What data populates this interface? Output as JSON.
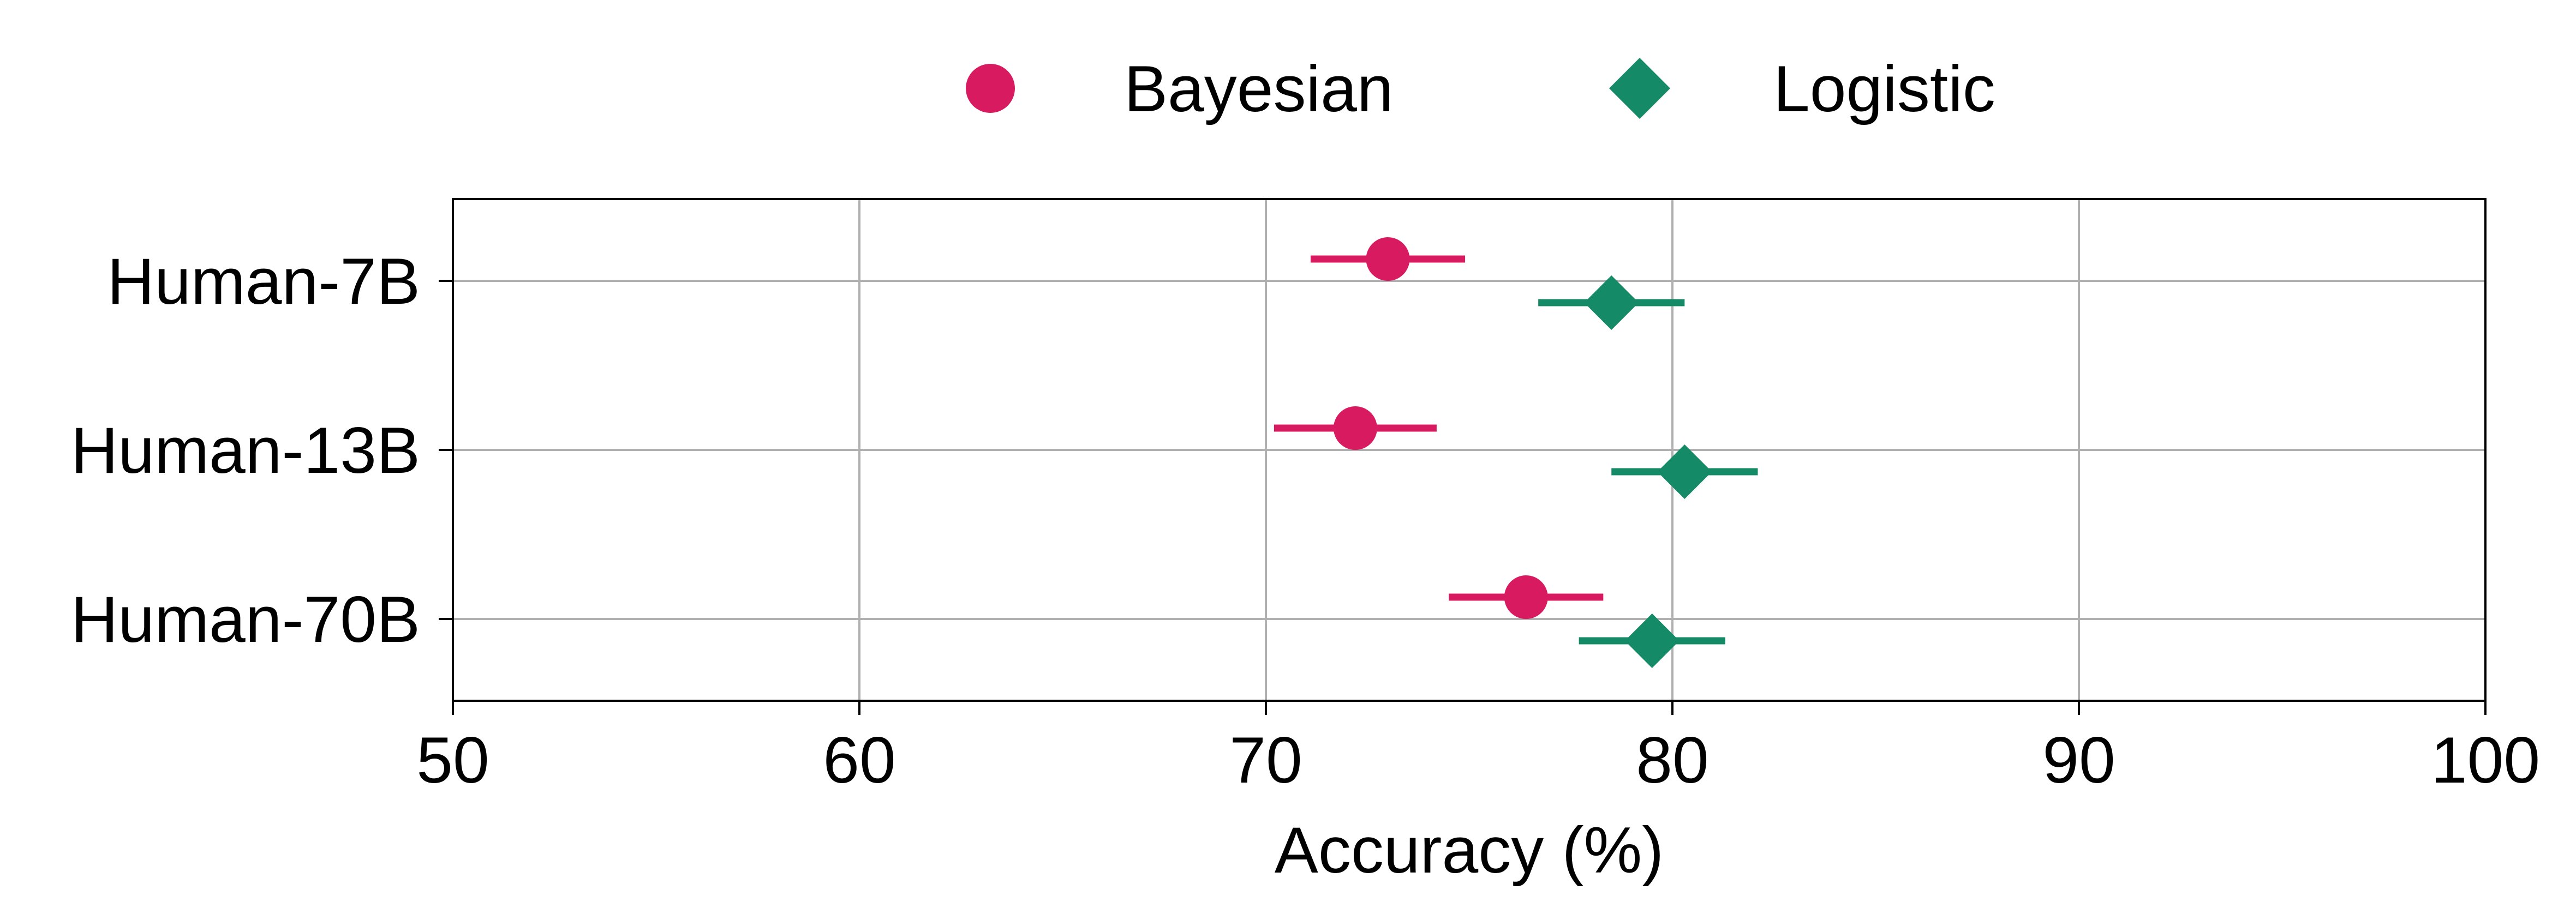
{
  "chart_data": {
    "type": "scatter",
    "orientation": "horizontal",
    "title": "",
    "xlabel": "Accuracy (%)",
    "ylabel": "",
    "xlim": [
      50,
      100
    ],
    "xticks": [
      50,
      60,
      70,
      80,
      90,
      100
    ],
    "grid": true,
    "legend_position": "top-center",
    "categories": [
      "Human-7B",
      "Human-13B",
      "Human-70B"
    ],
    "series": [
      {
        "name": "Bayesian",
        "marker": "circle",
        "color": "#d81b60",
        "values": [
          73.0,
          72.2,
          76.4
        ],
        "err": [
          1.9,
          2.0,
          1.9
        ]
      },
      {
        "name": "Logistic",
        "marker": "diamond",
        "color": "#148a67",
        "values": [
          78.5,
          80.3,
          79.5
        ],
        "err": [
          1.8,
          1.8,
          1.8
        ]
      }
    ]
  }
}
